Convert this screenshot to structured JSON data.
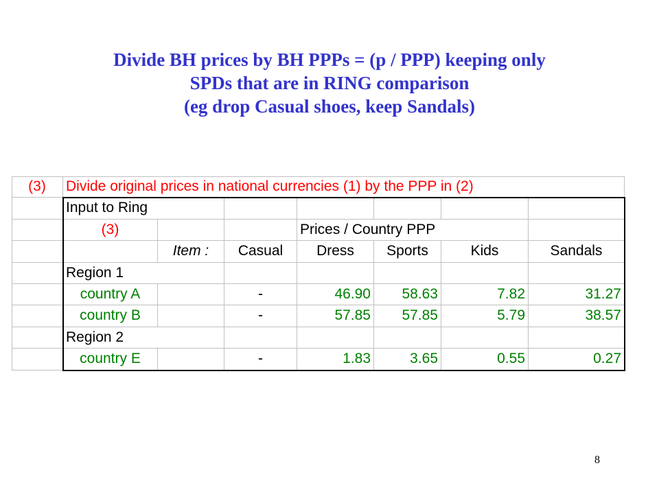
{
  "title": {
    "line1": "Divide BH prices by BH PPPs = (p / PPP) keeping only",
    "line2": "SPDs that are in RING comparison",
    "line3": "(eg drop Casual shoes, keep Sandals)"
  },
  "table": {
    "header_tag": "(3)",
    "header_text": "Divide original prices in national currencies (1) by the PPP in (2)",
    "input_label": "Input to Ring",
    "sub_tag": "(3)",
    "group_label": "Prices / Country PPP",
    "item_label": "Item :",
    "columns": [
      "Casual",
      "Dress",
      "Sports",
      "Kids",
      "Sandals"
    ],
    "rows": [
      {
        "label": "Region 1",
        "kind": "region",
        "values": []
      },
      {
        "label": "country A",
        "kind": "country",
        "values": [
          "-",
          "46.90",
          "58.63",
          "7.82",
          "31.27"
        ]
      },
      {
        "label": "country B",
        "kind": "country",
        "values": [
          "-",
          "57.85",
          "57.85",
          "5.79",
          "38.57"
        ]
      },
      {
        "label": "Region 2",
        "kind": "region",
        "values": []
      },
      {
        "label": "country E",
        "kind": "country",
        "values": [
          "-",
          "1.83",
          "3.65",
          "0.55",
          "0.27"
        ]
      }
    ]
  },
  "page_number": "8",
  "colors": {
    "title": "#3333cc",
    "header": "#ff0000",
    "values": "#008000",
    "gridline": "#c0c0c0"
  }
}
